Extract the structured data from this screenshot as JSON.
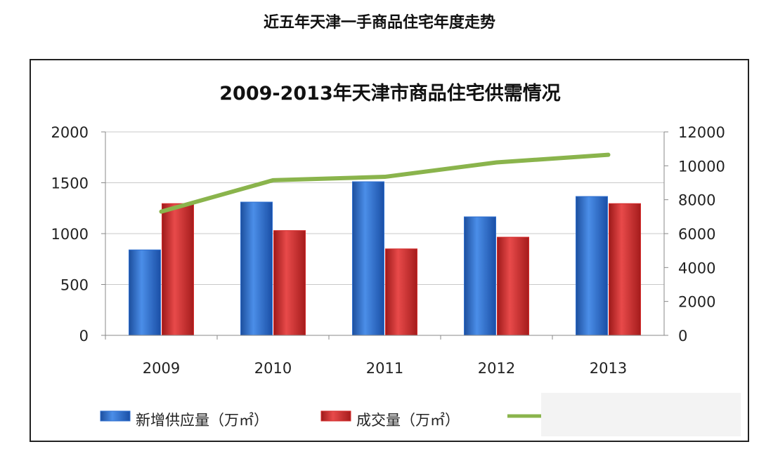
{
  "page": {
    "title": "近五年天津一手商品住宅年度走势"
  },
  "chart_data": {
    "type": "bar",
    "title": "2009-2013年天津市商品住宅供需情况",
    "categories": [
      "2009",
      "2010",
      "2011",
      "2012",
      "2013"
    ],
    "series": [
      {
        "name": "新增供应量（万㎡）",
        "type": "bar",
        "axis": "left",
        "color": "#2e6fd0",
        "values": [
          840,
          1310,
          1510,
          1165,
          1365
        ]
      },
      {
        "name": "成交量（万㎡）",
        "type": "bar",
        "axis": "left",
        "color": "#d42a2a",
        "values": [
          1295,
          1030,
          850,
          965,
          1295
        ]
      },
      {
        "name": "",
        "type": "line",
        "axis": "right",
        "color": "#8ab44c",
        "values": [
          7300,
          9150,
          9350,
          10200,
          10650
        ]
      }
    ],
    "y_left": {
      "min": 0,
      "max": 2000,
      "ticks": [
        0,
        500,
        1000,
        1500,
        2000
      ]
    },
    "y_right": {
      "min": 0,
      "max": 12000,
      "ticks": [
        0,
        2000,
        4000,
        6000,
        8000,
        10000,
        12000
      ]
    },
    "grid": true,
    "legend_position": "bottom"
  }
}
